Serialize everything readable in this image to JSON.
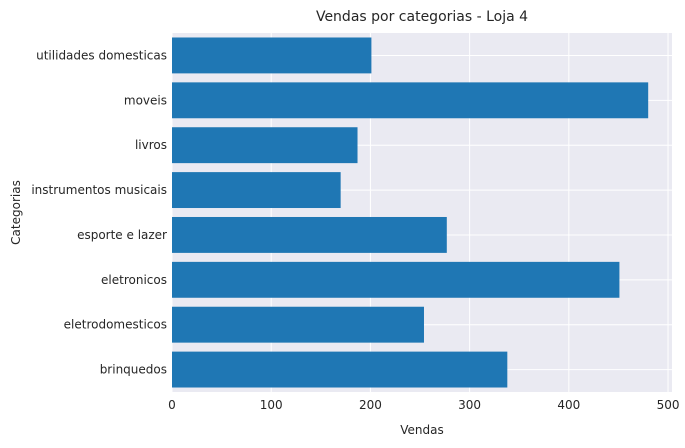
{
  "chart_data": {
    "type": "bar",
    "orientation": "horizontal",
    "title": "Vendas por categorias - Loja 4",
    "xlabel": "Vendas",
    "ylabel": "Categorias",
    "xlim": [
      0,
      504
    ],
    "xticks": [
      0,
      100,
      200,
      300,
      400,
      500
    ],
    "grid": true,
    "style": "seaborn-darkgrid",
    "bar_color": "#1f77b4",
    "background_color": "#eaeaf2",
    "grid_color": "#ffffff",
    "categories": [
      "brinquedos",
      "eletrodomesticos",
      "eletronicos",
      "esporte e lazer",
      "instrumentos musicais",
      "livros",
      "moveis",
      "utilidades domesticas"
    ],
    "values": [
      338,
      254,
      451,
      277,
      170,
      187,
      480,
      201
    ]
  }
}
